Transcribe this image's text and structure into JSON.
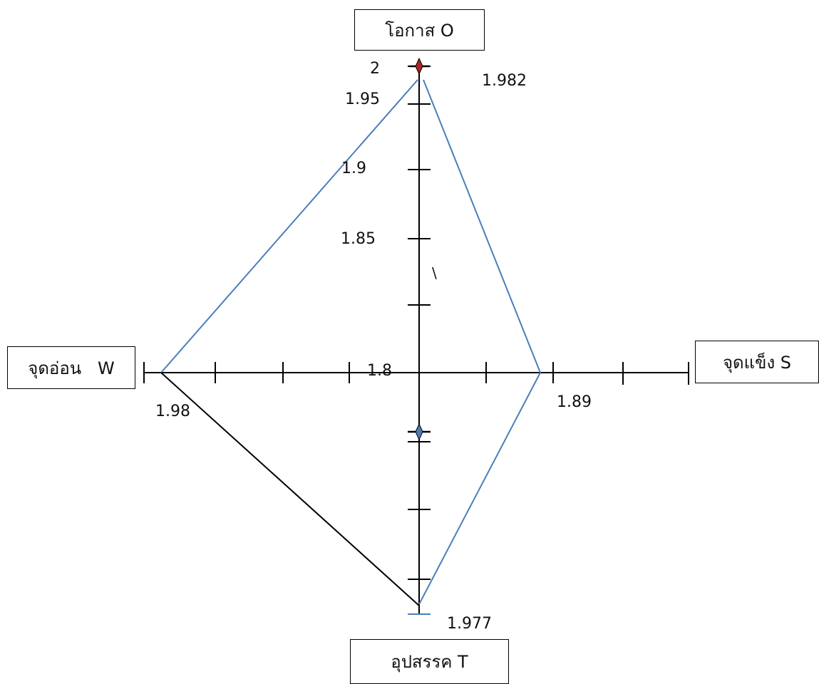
{
  "quadrants": {
    "opportunity": "โอกาส O",
    "strength": "จุดแข็ง S",
    "weakness": "จุดอ่อน   W",
    "threat": "อุปสรรค T"
  },
  "tick_labels": {
    "t2": "2",
    "t195": "1.95",
    "t19": "1.9",
    "t185": "1.85",
    "t18": "1.8"
  },
  "value_labels": {
    "opportunity": "1.982",
    "strength": "1.89",
    "weakness": "1.98",
    "threat": "1.977"
  },
  "stray_mark": "\\",
  "colors": {
    "axis": "#000000",
    "polygon_blue": "#4a7ebb",
    "polygon_black": "#000000",
    "marker_red": "#b22222",
    "marker_blue": "#4a7ebb"
  }
}
